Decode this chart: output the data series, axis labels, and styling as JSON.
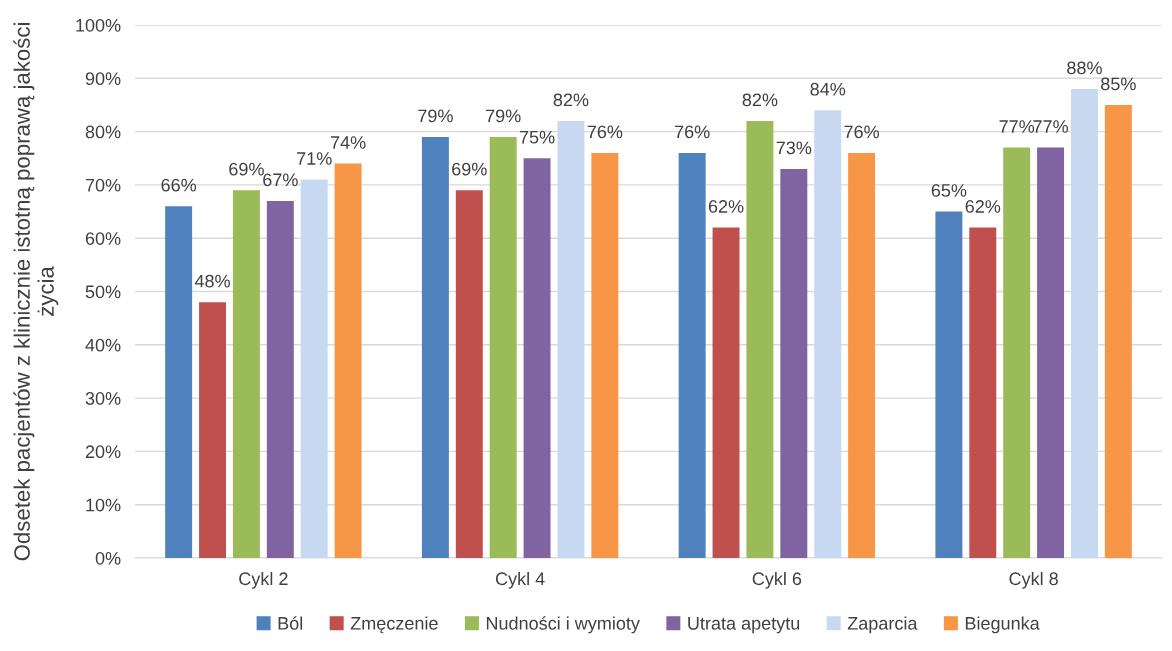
{
  "chart_data": {
    "type": "bar",
    "ylabel": "Odsetek pacjentów z klinicznie istotną poprawą jakości życia",
    "categories": [
      "Cykl 2",
      "Cykl 4",
      "Cykl 6",
      "Cykl 8"
    ],
    "series": [
      {
        "name": "Ból",
        "color": "#4f81bd",
        "values": [
          66,
          79,
          76,
          65
        ],
        "value_labels": [
          "66%",
          "79%",
          "76%",
          "65%"
        ]
      },
      {
        "name": "Zmęczenie",
        "color": "#c0504d",
        "values": [
          48,
          69,
          62,
          62
        ],
        "value_labels": [
          "48%",
          "69%",
          "62%",
          "62%"
        ]
      },
      {
        "name": "Nudności i wymioty",
        "color": "#9bbb59",
        "values": [
          69,
          79,
          82,
          77
        ],
        "value_labels": [
          "69%",
          "79%",
          "82%",
          "77%"
        ]
      },
      {
        "name": "Utrata apetytu",
        "color": "#8064a2",
        "values": [
          67,
          75,
          73,
          77
        ],
        "value_labels": [
          "67%",
          "75%",
          "73%",
          "77%"
        ]
      },
      {
        "name": "Zaparcia",
        "color": "#c6d9f1",
        "values": [
          71,
          82,
          84,
          88
        ],
        "value_labels": [
          "71%",
          "82%",
          "84%",
          "88%"
        ]
      },
      {
        "name": "Biegunka",
        "color": "#f79646",
        "values": [
          74,
          76,
          76,
          85
        ],
        "value_labels": [
          "74%",
          "76%",
          "76%",
          "85%"
        ]
      }
    ],
    "ylim": [
      0,
      100
    ],
    "yticks": [
      {
        "value": 0,
        "label": "0%"
      },
      {
        "value": 10,
        "label": "10%"
      },
      {
        "value": 20,
        "label": "20%"
      },
      {
        "value": 30,
        "label": "30%"
      },
      {
        "value": 40,
        "label": "40%"
      },
      {
        "value": 50,
        "label": "50%"
      },
      {
        "value": 60,
        "label": "60%"
      },
      {
        "value": 70,
        "label": "70%"
      },
      {
        "value": 80,
        "label": "80%"
      },
      {
        "value": 90,
        "label": "90%"
      },
      {
        "value": 100,
        "label": "100%"
      }
    ],
    "grid": "y",
    "legend": "bottom"
  }
}
